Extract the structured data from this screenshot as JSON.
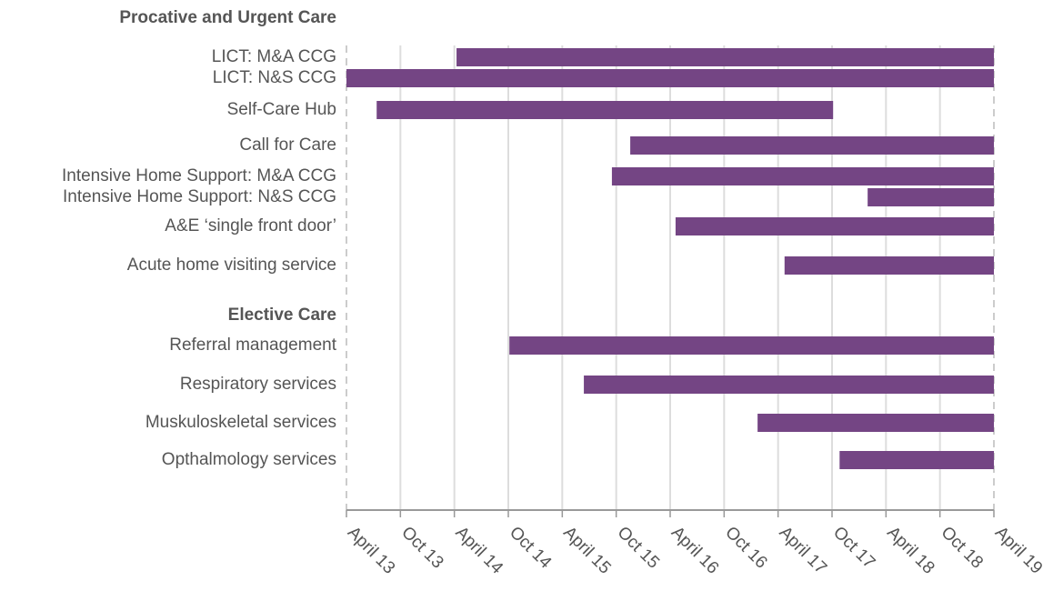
{
  "chart_data": {
    "type": "gantt",
    "groups": [
      {
        "name": "Procative and Urgent Care",
        "tasks": [
          {
            "name": "LICT: M&A CCG",
            "start": 2014.27,
            "end": 2019.25
          },
          {
            "name": "LICT: N&S CCG",
            "start": 2013.25,
            "end": 2019.25
          },
          {
            "name": "Self-Care Hub",
            "start": 2013.53,
            "end": 2017.76
          },
          {
            "name": "Call for Care",
            "start": 2015.88,
            "end": 2019.25
          },
          {
            "name": "Intensive Home Support: M&A CCG",
            "start": 2015.71,
            "end": 2019.25
          },
          {
            "name": "Intensive Home Support: N&S CCG",
            "start": 2018.08,
            "end": 2019.25
          },
          {
            "name": "A&E ‘single front door’",
            "start": 2016.3,
            "end": 2019.25
          },
          {
            "name": "Acute home visiting service",
            "start": 2017.31,
            "end": 2019.25
          }
        ]
      },
      {
        "name": "Elective Care",
        "tasks": [
          {
            "name": "Referral management",
            "start": 2014.76,
            "end": 2019.25
          },
          {
            "name": "Respiratory services",
            "start": 2015.45,
            "end": 2019.25
          },
          {
            "name": "Muskuloskeletal services",
            "start": 2017.06,
            "end": 2019.25
          },
          {
            "name": "Opthalmology services",
            "start": 2017.82,
            "end": 2019.25
          }
        ]
      }
    ],
    "color": "#744584",
    "grid": true,
    "xlim": [
      2013.25,
      2019.25
    ],
    "xticks": [
      {
        "value": 2013.25,
        "label": "April 13"
      },
      {
        "value": 2013.75,
        "label": "Oct 13"
      },
      {
        "value": 2014.25,
        "label": "April 14"
      },
      {
        "value": 2014.75,
        "label": "Oct 14"
      },
      {
        "value": 2015.25,
        "label": "April 15"
      },
      {
        "value": 2015.75,
        "label": "Oct 15"
      },
      {
        "value": 2016.25,
        "label": "April 16"
      },
      {
        "value": 2016.75,
        "label": "Oct 16"
      },
      {
        "value": 2017.25,
        "label": "April 17"
      },
      {
        "value": 2017.75,
        "label": "Oct 17"
      },
      {
        "value": 2018.25,
        "label": "April 18"
      },
      {
        "value": 2018.75,
        "label": "Oct 18"
      },
      {
        "value": 2019.25,
        "label": "April 19"
      }
    ]
  }
}
